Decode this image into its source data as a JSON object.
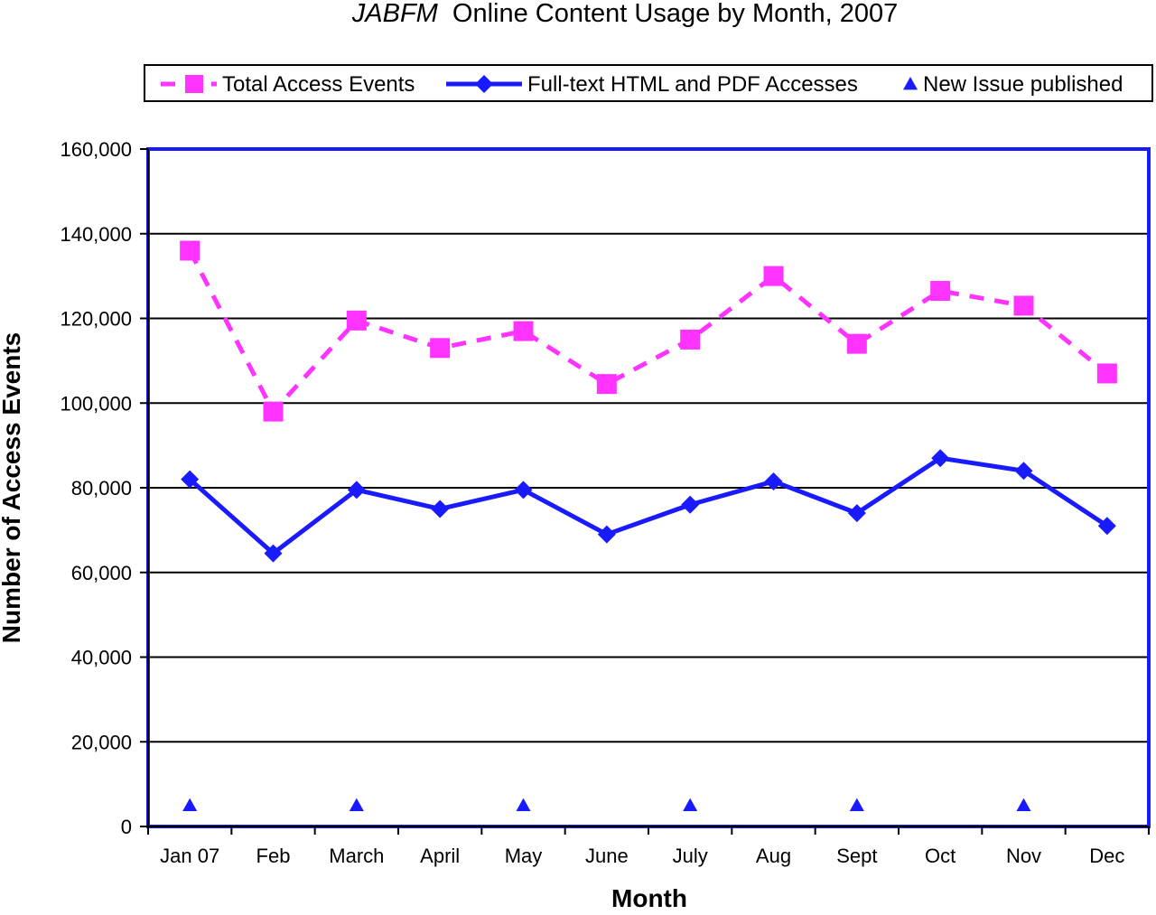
{
  "chart_data": {
    "type": "line",
    "title_italic": "JABFM",
    "title_rest": "Online Content Usage by Month, 2007",
    "xlabel": "Month",
    "ylabel": "Number of Access Events",
    "categories": [
      "Jan 07",
      "Feb",
      "March",
      "April",
      "May",
      "June",
      "July",
      "Aug",
      "Sept",
      "Oct",
      "Nov",
      "Dec"
    ],
    "ylim": [
      0,
      160000
    ],
    "yticks": [
      0,
      20000,
      40000,
      60000,
      80000,
      100000,
      120000,
      140000,
      160000
    ],
    "ytick_labels": [
      "0",
      "20,000",
      "40,000",
      "60,000",
      "80,000",
      "100,000",
      "120,000",
      "140,000",
      "160,000"
    ],
    "grid": true,
    "legend_position": "top",
    "series": [
      {
        "name": "Total Access Events",
        "color": "#ff33ff",
        "line_style": "dashed",
        "marker": "square",
        "values": [
          136000,
          98000,
          119500,
          113000,
          117000,
          104500,
          115000,
          130000,
          114000,
          126500,
          123000,
          107000
        ]
      },
      {
        "name": "Full-text HTML and PDF Accesses",
        "color": "#1a1aff",
        "line_style": "solid",
        "marker": "diamond",
        "values": [
          82000,
          64500,
          79500,
          75000,
          79500,
          69000,
          76000,
          81500,
          74000,
          87000,
          84000,
          71000
        ]
      },
      {
        "name": "New Issue published",
        "color": "#1a1aff",
        "line_style": "none",
        "marker": "triangle",
        "x": [
          "Jan 07",
          "March",
          "May",
          "July",
          "Sept",
          "Nov"
        ],
        "values": [
          5000,
          5000,
          5000,
          5000,
          5000,
          5000
        ]
      }
    ]
  }
}
